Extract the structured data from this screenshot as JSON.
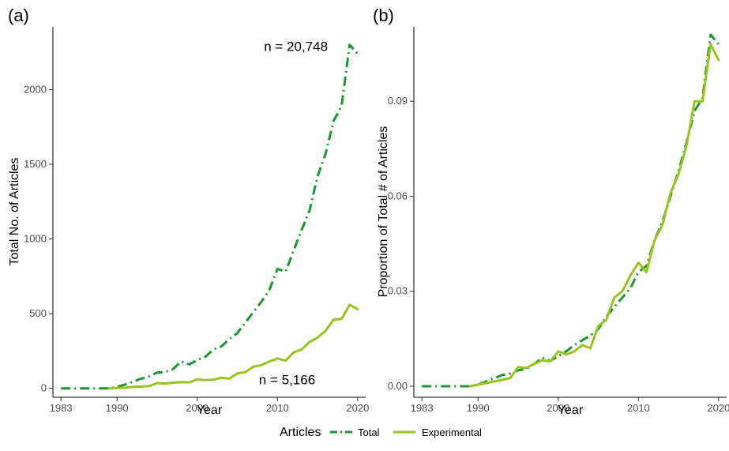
{
  "chart_data": [
    {
      "panel_label": "(a)",
      "type": "line",
      "xlabel": "Year",
      "ylabel": "Total No. of Articles",
      "xlim": [
        1982,
        2021
      ],
      "ylim": [
        -60,
        2420
      ],
      "xticks": [
        1983,
        1990,
        2000,
        2010,
        2020
      ],
      "yticks": [
        0,
        500,
        1000,
        1500,
        2000
      ],
      "ytick_labels": [
        "0",
        "500",
        "1000",
        "1500",
        "2000"
      ],
      "grid": false,
      "annotations": [
        {
          "text": "n = 20,748",
          "x": 2012.3,
          "y": 2290
        },
        {
          "text": "n = 5,166",
          "x": 2011.2,
          "y": 60
        }
      ],
      "series": [
        {
          "name": "Total",
          "color": "#1a9632",
          "style": "dashdot",
          "x": [
            1983,
            1984,
            1985,
            1986,
            1987,
            1988,
            1989,
            1990,
            1991,
            1992,
            1993,
            1994,
            1995,
            1996,
            1997,
            1998,
            1999,
            2000,
            2001,
            2002,
            2003,
            2004,
            2005,
            2006,
            2007,
            2008,
            2009,
            2010,
            2011,
            2012,
            2013,
            2014,
            2015,
            2016,
            2017,
            2018,
            2019,
            2020
          ],
          "values": [
            0,
            0,
            0,
            0,
            0,
            0,
            0,
            10,
            25,
            45,
            65,
            80,
            105,
            110,
            130,
            180,
            160,
            190,
            210,
            260,
            280,
            330,
            370,
            440,
            510,
            580,
            660,
            800,
            780,
            920,
            1060,
            1190,
            1420,
            1570,
            1790,
            1890,
            2300,
            2240
          ]
        },
        {
          "name": "Experimental",
          "color": "#99c31e",
          "style": "solid",
          "x": [
            1989,
            1990,
            1991,
            1992,
            1993,
            1994,
            1995,
            1996,
            1997,
            1998,
            1999,
            2000,
            2001,
            2002,
            2003,
            2004,
            2005,
            2006,
            2007,
            2008,
            2009,
            2010,
            2011,
            2012,
            2013,
            2014,
            2015,
            2016,
            2017,
            2018,
            2019,
            2020
          ],
          "values": [
            0,
            2,
            4,
            10,
            12,
            15,
            35,
            32,
            38,
            42,
            40,
            60,
            55,
            58,
            70,
            65,
            100,
            108,
            145,
            155,
            180,
            200,
            185,
            240,
            260,
            310,
            340,
            385,
            460,
            465,
            560,
            530
          ]
        }
      ]
    },
    {
      "panel_label": "(b)",
      "type": "line",
      "xlabel": "Year",
      "ylabel": "Proportion of Total # of Articles",
      "xlim": [
        1982,
        2021
      ],
      "ylim": [
        -0.0035,
        0.1135
      ],
      "xticks": [
        1983,
        1990,
        2000,
        2010,
        2020
      ],
      "yticks": [
        0,
        0.03,
        0.06,
        0.09
      ],
      "ytick_labels": [
        "0.00",
        "0.03",
        "0.06",
        "0.09"
      ],
      "grid": false,
      "series": [
        {
          "name": "Total",
          "color": "#1a9632",
          "style": "dashdot",
          "x": [
            1983,
            1984,
            1985,
            1986,
            1987,
            1988,
            1989,
            1990,
            1991,
            1992,
            1993,
            1994,
            1995,
            1996,
            1997,
            1998,
            1999,
            2000,
            2001,
            2002,
            2003,
            2004,
            2005,
            2006,
            2007,
            2008,
            2009,
            2010,
            2011,
            2012,
            2013,
            2014,
            2015,
            2016,
            2017,
            2018,
            2019,
            2020
          ],
          "values": [
            0,
            0,
            0,
            0,
            0,
            0,
            0,
            0.0005,
            0.0015,
            0.0025,
            0.0035,
            0.004,
            0.005,
            0.0055,
            0.007,
            0.009,
            0.008,
            0.0095,
            0.011,
            0.013,
            0.0145,
            0.016,
            0.018,
            0.022,
            0.025,
            0.028,
            0.031,
            0.036,
            0.038,
            0.046,
            0.052,
            0.06,
            0.068,
            0.077,
            0.087,
            0.091,
            0.111,
            0.108
          ]
        },
        {
          "name": "Experimental",
          "color": "#99c31e",
          "style": "solid",
          "x": [
            1989,
            1990,
            1991,
            1992,
            1993,
            1994,
            1995,
            1996,
            1997,
            1998,
            1999,
            2000,
            2001,
            2002,
            2003,
            2004,
            2005,
            2006,
            2007,
            2008,
            2009,
            2010,
            2011,
            2012,
            2013,
            2014,
            2015,
            2016,
            2017,
            2018,
            2019,
            2020
          ],
          "values": [
            0,
            0.0005,
            0.001,
            0.0015,
            0.002,
            0.0025,
            0.006,
            0.0058,
            0.007,
            0.0082,
            0.0078,
            0.011,
            0.01,
            0.011,
            0.013,
            0.012,
            0.019,
            0.021,
            0.028,
            0.03,
            0.035,
            0.039,
            0.036,
            0.046,
            0.051,
            0.061,
            0.067,
            0.076,
            0.09,
            0.09,
            0.108,
            0.103
          ]
        }
      ]
    }
  ],
  "legend": {
    "title": "Articles",
    "position": "bottom",
    "entries": [
      {
        "label": "Total",
        "color": "#1a9632",
        "style": "dashdot"
      },
      {
        "label": "Experimental",
        "color": "#99c31e",
        "style": "solid"
      }
    ]
  }
}
